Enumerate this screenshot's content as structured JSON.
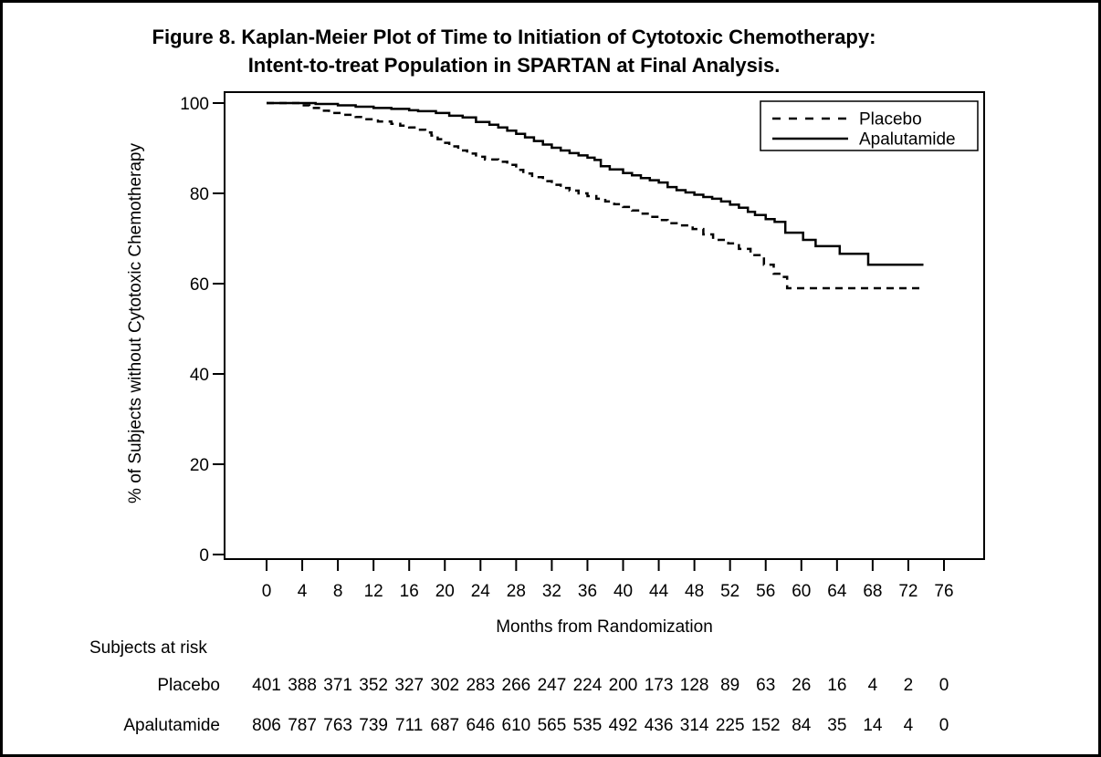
{
  "figure": {
    "title_line1": "Figure 8. Kaplan-Meier Plot of Time to Initiation of Cytotoxic Chemotherapy:",
    "title_line2": "Intent-to-treat Population in SPARTAN at Final Analysis."
  },
  "colors": {
    "foreground": "#000000",
    "background": "#ffffff"
  },
  "chart_data": {
    "type": "line",
    "subtype": "kaplan-meier-step",
    "title": "Figure 8. Kaplan-Meier Plot of Time to Initiation of Cytotoxic Chemotherapy: Intent-to-treat Population in SPARTAN at Final Analysis.",
    "xlabel": "Months from Randomization",
    "ylabel": "% of Subjects without Cytotoxic Chemotherapy",
    "xlim": [
      0,
      76
    ],
    "ylim": [
      0,
      100
    ],
    "xticks": [
      0,
      4,
      8,
      12,
      16,
      20,
      24,
      28,
      32,
      36,
      40,
      44,
      48,
      52,
      56,
      60,
      64,
      68,
      72,
      76
    ],
    "yticks": [
      0,
      20,
      40,
      60,
      80,
      100
    ],
    "grid": false,
    "legend_position": "top-right",
    "legend": [
      {
        "label": "Placebo",
        "style": "dashed"
      },
      {
        "label": "Apalutamide",
        "style": "solid"
      }
    ],
    "series": [
      {
        "name": "Placebo",
        "style": "dashed",
        "points": [
          [
            0,
            100
          ],
          [
            3.9,
            99.5
          ],
          [
            4.8,
            98.9
          ],
          [
            6,
            98.3
          ],
          [
            7,
            97.8
          ],
          [
            8.5,
            97.4
          ],
          [
            10,
            96.9
          ],
          [
            11,
            96.4
          ],
          [
            12.5,
            95.9
          ],
          [
            14,
            95.4
          ],
          [
            15,
            95.0
          ],
          [
            16,
            94.6
          ],
          [
            17,
            94.1
          ],
          [
            17.8,
            93.5
          ],
          [
            18.5,
            92.8
          ],
          [
            19.2,
            92.0
          ],
          [
            19.8,
            91.2
          ],
          [
            20.5,
            90.4
          ],
          [
            21.5,
            89.5
          ],
          [
            22.5,
            88.8
          ],
          [
            23.5,
            88.1
          ],
          [
            24.5,
            87.5
          ],
          [
            26,
            87.0
          ],
          [
            27,
            86.3
          ],
          [
            28,
            85.2
          ],
          [
            28.8,
            84.4
          ],
          [
            29.8,
            83.6
          ],
          [
            31,
            82.7
          ],
          [
            32,
            81.9
          ],
          [
            33,
            81.2
          ],
          [
            34,
            80.6
          ],
          [
            35,
            80.0
          ],
          [
            36,
            79.4
          ],
          [
            37,
            78.8
          ],
          [
            38,
            78.2
          ],
          [
            39,
            77.6
          ],
          [
            40,
            77.0
          ],
          [
            41,
            76.2
          ],
          [
            42,
            75.5
          ],
          [
            43,
            74.8
          ],
          [
            44,
            74.1
          ],
          [
            45,
            73.4
          ],
          [
            46,
            72.9
          ],
          [
            47.8,
            72.1
          ],
          [
            49,
            70.9
          ],
          [
            50.1,
            69.7
          ],
          [
            51.8,
            68.9
          ],
          [
            53,
            67.7
          ],
          [
            54.3,
            66.3
          ],
          [
            55.8,
            64.2
          ],
          [
            56.9,
            62.2
          ],
          [
            57.8,
            61.5
          ],
          [
            58.4,
            59.0
          ],
          [
            73.7,
            59.0
          ]
        ]
      },
      {
        "name": "Apalutamide",
        "style": "solid",
        "points": [
          [
            0,
            100
          ],
          [
            5.5,
            99.8
          ],
          [
            8,
            99.5
          ],
          [
            10,
            99.2
          ],
          [
            12,
            98.9
          ],
          [
            14,
            98.7
          ],
          [
            16,
            98.4
          ],
          [
            17,
            98.2
          ],
          [
            19,
            97.8
          ],
          [
            20.5,
            97.2
          ],
          [
            22,
            96.8
          ],
          [
            23.5,
            95.8
          ],
          [
            25,
            95.2
          ],
          [
            26,
            94.6
          ],
          [
            27,
            93.9
          ],
          [
            28,
            93.2
          ],
          [
            29,
            92.4
          ],
          [
            30,
            91.6
          ],
          [
            31,
            90.8
          ],
          [
            32,
            90.1
          ],
          [
            33,
            89.5
          ],
          [
            34,
            88.9
          ],
          [
            35,
            88.4
          ],
          [
            36,
            87.9
          ],
          [
            36.8,
            87.4
          ],
          [
            37.5,
            86.0
          ],
          [
            38.5,
            85.3
          ],
          [
            40,
            84.5
          ],
          [
            41,
            84.0
          ],
          [
            42,
            83.4
          ],
          [
            43,
            82.9
          ],
          [
            44,
            82.4
          ],
          [
            45,
            81.4
          ],
          [
            46,
            80.7
          ],
          [
            47,
            80.2
          ],
          [
            48,
            79.7
          ],
          [
            49,
            79.2
          ],
          [
            50,
            78.8
          ],
          [
            51,
            78.2
          ],
          [
            52,
            77.5
          ],
          [
            53,
            76.8
          ],
          [
            54,
            75.9
          ],
          [
            54.8,
            75.2
          ],
          [
            56,
            74.3
          ],
          [
            57,
            73.7
          ],
          [
            58.2,
            71.3
          ],
          [
            60.2,
            69.7
          ],
          [
            61.6,
            68.3
          ],
          [
            64.3,
            66.6
          ],
          [
            67.5,
            64.2
          ],
          [
            73.7,
            64.2
          ]
        ]
      }
    ],
    "risk_table": {
      "header": "Subjects at risk",
      "months": [
        0,
        4,
        8,
        12,
        16,
        20,
        24,
        28,
        32,
        36,
        40,
        44,
        48,
        52,
        56,
        60,
        64,
        68,
        72,
        76
      ],
      "rows": [
        {
          "label": "Placebo",
          "counts": [
            401,
            388,
            371,
            352,
            327,
            302,
            283,
            266,
            247,
            224,
            200,
            173,
            128,
            89,
            63,
            26,
            16,
            4,
            2,
            0
          ]
        },
        {
          "label": "Apalutamide",
          "counts": [
            806,
            787,
            763,
            739,
            711,
            687,
            646,
            610,
            565,
            535,
            492,
            436,
            314,
            225,
            152,
            84,
            35,
            14,
            4,
            0
          ]
        }
      ]
    }
  }
}
